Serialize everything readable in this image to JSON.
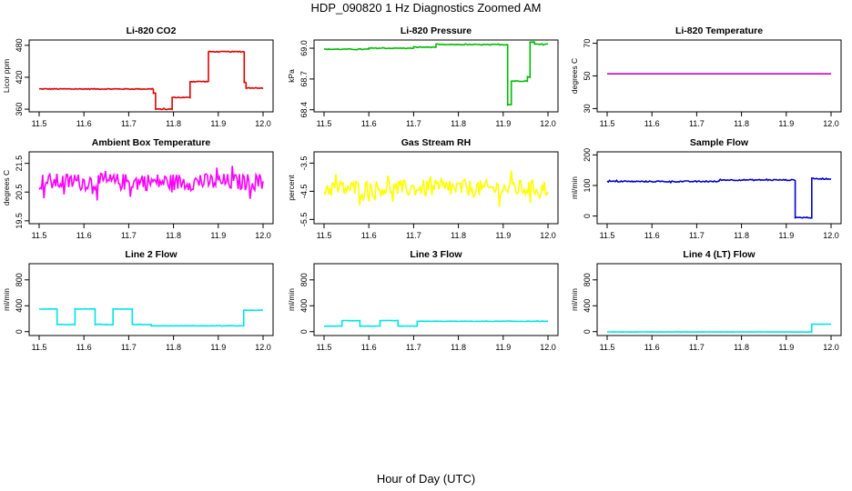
{
  "figure": {
    "title": "HDP_090820  1 Hz Diagnostics Zoomed AM",
    "xlabel": "Hour of Day (UTC)"
  },
  "chart_data": [
    {
      "type": "line",
      "title": "Li-820 CO2",
      "ylabel": "Licor ppm",
      "color": "#dd0000",
      "xlim": [
        11.5,
        12.0
      ],
      "ylim": [
        355,
        490
      ],
      "xticks": [
        "11.5",
        "11.6",
        "11.7",
        "11.8",
        "11.9",
        "12.0"
      ],
      "yticks": [
        "360",
        "420",
        "480"
      ],
      "noise": 0.8,
      "steps": [
        [
          11.5,
          11.755,
          398
        ],
        [
          11.755,
          11.76,
          390
        ],
        [
          11.76,
          11.797,
          360
        ],
        [
          11.797,
          11.837,
          382
        ],
        [
          11.837,
          11.878,
          412
        ],
        [
          11.878,
          11.958,
          468
        ],
        [
          11.958,
          11.962,
          410
        ],
        [
          11.962,
          12.0,
          400
        ]
      ]
    },
    {
      "type": "line",
      "title": "Li-820 Pressure",
      "ylabel": "kPa",
      "color": "#00bb00",
      "xlim": [
        11.5,
        12.0
      ],
      "ylim": [
        68.38,
        69.08
      ],
      "xticks": [
        "11.5",
        "11.6",
        "11.7",
        "11.8",
        "11.9",
        "12.0"
      ],
      "yticks": [
        "68.4",
        "68.7",
        "69.0"
      ],
      "noise": 0.004,
      "steps": [
        [
          11.5,
          11.6,
          68.99
        ],
        [
          11.6,
          11.7,
          69.0
        ],
        [
          11.7,
          11.75,
          69.01
        ],
        [
          11.75,
          11.91,
          69.035
        ],
        [
          11.91,
          11.918,
          68.45
        ],
        [
          11.918,
          11.954,
          68.68
        ],
        [
          11.954,
          11.96,
          68.72
        ],
        [
          11.96,
          11.97,
          69.06
        ],
        [
          11.97,
          12.0,
          69.04
        ]
      ]
    },
    {
      "type": "line",
      "title": "Li-820 Temperature",
      "ylabel": "degrees C",
      "color": "#cc00cc",
      "xlim": [
        11.5,
        12.0
      ],
      "ylim": [
        28,
        72
      ],
      "xticks": [
        "11.5",
        "11.6",
        "11.7",
        "11.8",
        "11.9",
        "12.0"
      ],
      "yticks": [
        "30",
        "50",
        "70"
      ],
      "noise": 0,
      "steps": [
        [
          11.5,
          12.0,
          51.3
        ]
      ]
    },
    {
      "type": "line",
      "title": "Ambient Box Temperature",
      "ylabel": "degrees C",
      "color": "#ff00ff",
      "xlim": [
        11.5,
        12.0
      ],
      "ylim": [
        19.4,
        21.9
      ],
      "xticks": [
        "11.5",
        "11.6",
        "11.7",
        "11.8",
        "11.9",
        "12.0"
      ],
      "yticks": [
        "19.5",
        "20.5",
        "21.5"
      ],
      "noise": 0.3,
      "steps": [
        [
          11.5,
          12.0,
          20.85
        ]
      ]
    },
    {
      "type": "line",
      "title": "Gas Stream RH",
      "ylabel": "percent",
      "color": "#ffff00",
      "xlim": [
        11.5,
        12.0
      ],
      "ylim": [
        -5.65,
        -3.1
      ],
      "xticks": [
        "11.5",
        "11.6",
        "11.7",
        "11.8",
        "11.9",
        "12.0"
      ],
      "yticks": [
        "-5.5",
        "-4.5",
        "-3.5"
      ],
      "noise": 0.3,
      "steps": [
        [
          11.5,
          12.0,
          -4.4
        ]
      ]
    },
    {
      "type": "line",
      "title": "Sample Flow",
      "ylabel": "ml/min",
      "color": "#0000cc",
      "xlim": [
        11.5,
        12.0
      ],
      "ylim": [
        -25,
        210
      ],
      "xticks": [
        "11.5",
        "11.6",
        "11.7",
        "11.8",
        "11.9",
        "12.0"
      ],
      "yticks": [
        "0",
        "100",
        "200"
      ],
      "noise": 2,
      "steps": [
        [
          11.5,
          11.75,
          113
        ],
        [
          11.75,
          11.92,
          118
        ],
        [
          11.92,
          11.957,
          -5
        ],
        [
          11.957,
          12.0,
          122
        ]
      ]
    },
    {
      "type": "line",
      "title": "Line 2 Flow",
      "ylabel": "ml/min",
      "color": "#00e5e5",
      "xlim": [
        11.5,
        12.0
      ],
      "ylim": [
        -60,
        1050
      ],
      "xticks": [
        "11.5",
        "11.6",
        "11.7",
        "11.8",
        "11.9",
        "12.0"
      ],
      "yticks": [
        "0",
        "400",
        "800"
      ],
      "noise": 3,
      "steps": [
        [
          11.5,
          11.54,
          350
        ],
        [
          11.54,
          11.58,
          110
        ],
        [
          11.58,
          11.625,
          350
        ],
        [
          11.625,
          11.665,
          110
        ],
        [
          11.665,
          11.708,
          350
        ],
        [
          11.708,
          11.75,
          110
        ],
        [
          11.75,
          11.957,
          90
        ],
        [
          11.957,
          12.0,
          330
        ]
      ]
    },
    {
      "type": "line",
      "title": "Line 3 Flow",
      "ylabel": "ml/min",
      "color": "#00e5e5",
      "xlim": [
        11.5,
        12.0
      ],
      "ylim": [
        -60,
        1050
      ],
      "xticks": [
        "11.5",
        "11.6",
        "11.7",
        "11.8",
        "11.9",
        "12.0"
      ],
      "yticks": [
        "0",
        "400",
        "800"
      ],
      "noise": 3,
      "steps": [
        [
          11.5,
          11.54,
          85
        ],
        [
          11.54,
          11.58,
          170
        ],
        [
          11.58,
          11.625,
          85
        ],
        [
          11.625,
          11.665,
          170
        ],
        [
          11.665,
          11.708,
          85
        ],
        [
          11.708,
          12.0,
          160
        ]
      ]
    },
    {
      "type": "line",
      "title": "Line 4 (LT) Flow",
      "ylabel": "ml/min",
      "color": "#00e5e5",
      "xlim": [
        11.5,
        12.0
      ],
      "ylim": [
        -60,
        1050
      ],
      "xticks": [
        "11.5",
        "11.6",
        "11.7",
        "11.8",
        "11.9",
        "12.0"
      ],
      "yticks": [
        "0",
        "400",
        "800"
      ],
      "noise": 2,
      "steps": [
        [
          11.5,
          11.957,
          -5
        ],
        [
          11.957,
          12.0,
          115
        ]
      ]
    }
  ]
}
